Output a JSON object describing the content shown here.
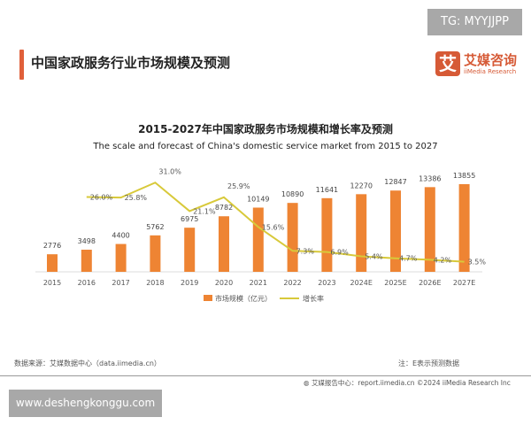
{
  "watermark_top": "TG: MYYJJPP",
  "header": {
    "title": "中国家政服务行业市场规模及预测"
  },
  "logo": {
    "cn": "艾媒咨询",
    "en": "iiMedia Research",
    "mark": "艾"
  },
  "colors": {
    "bar": "#ee8433",
    "line": "#d8c93a",
    "accent": "#e0603a"
  },
  "chart_data": {
    "type": "bar+line",
    "title": "2015-2027年中国家政服务市场规模和增长率及预测",
    "subtitle": "The scale and forecast of China's domestic service market from 2015 to 2027",
    "categories": [
      "2015",
      "2016",
      "2017",
      "2018",
      "2019",
      "2020",
      "2021",
      "2022",
      "2023",
      "2024E",
      "2025E",
      "2026E",
      "2027E"
    ],
    "series": [
      {
        "name": "市场规模（亿元）",
        "type": "bar",
        "values": [
          2776,
          3498,
          4400,
          5762,
          6975,
          8782,
          10149,
          10890,
          11641,
          12270,
          12847,
          13386,
          13855
        ]
      },
      {
        "name": "增长率",
        "type": "line",
        "values": [
          null,
          26.0,
          25.8,
          31.0,
          21.1,
          25.9,
          15.6,
          7.3,
          6.9,
          5.4,
          4.7,
          4.2,
          3.5
        ],
        "labels": [
          "",
          "26.0%",
          "25.8%",
          "31.0%",
          "21.1%",
          "25.9%",
          "15.6%",
          "7.3%",
          "6.9%",
          "5.4%",
          "4.7%",
          "4.2%",
          "3.5%"
        ]
      }
    ],
    "legend": "bottom",
    "grid": false
  },
  "footer": {
    "source": "数据来源：艾媒数据中心（data.iimedia.cn）",
    "note": "注：E表示预测数据",
    "report": "艾媒报告中心：report.iimedia.cn    ©2024  iiMedia Research  Inc"
  },
  "watermark_bottom": "www.deshengkonggu.com"
}
